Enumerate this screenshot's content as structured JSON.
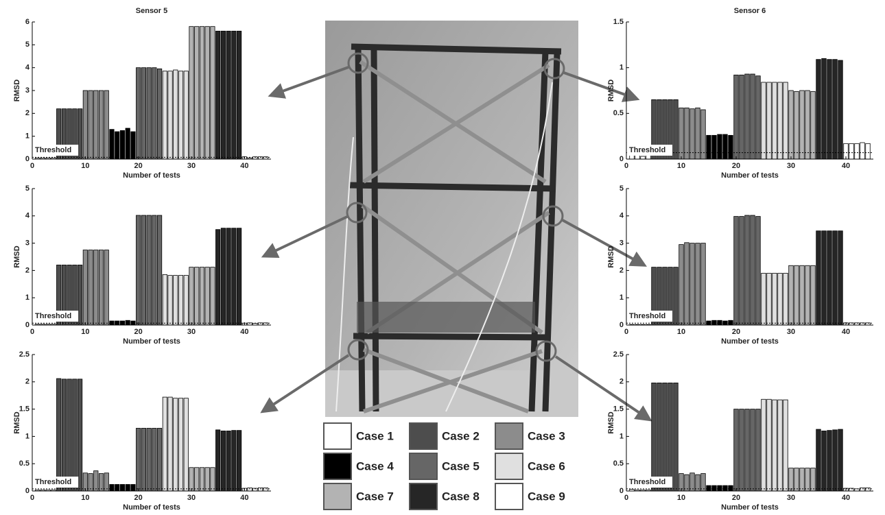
{
  "legend": [
    {
      "name": "Case 1",
      "color": "#ffffff"
    },
    {
      "name": "Case 2",
      "color": "#4d4d4d"
    },
    {
      "name": "Case 3",
      "color": "#8c8c8c"
    },
    {
      "name": "Case 4",
      "color": "#000000"
    },
    {
      "name": "Case 5",
      "color": "#666666"
    },
    {
      "name": "Case 6",
      "color": "#e0e0e0"
    },
    {
      "name": "Case 7",
      "color": "#b3b3b3"
    },
    {
      "name": "Case 8",
      "color": "#262626"
    },
    {
      "name": "Case 9",
      "color": "#ffffff"
    }
  ],
  "chart_data": [
    {
      "type": "bar",
      "title": "Sensor 5",
      "xlabel": "Number of tests",
      "ylabel": "RMSD",
      "xlim": [
        0,
        45
      ],
      "xticks": [
        0,
        10,
        20,
        30,
        40
      ],
      "ylim": [
        0,
        6
      ],
      "yticks": [
        0,
        1,
        2,
        3,
        4,
        5,
        6
      ],
      "threshold": {
        "label": "Threshold",
        "value": 0.08
      },
      "series": [
        {
          "x": [
            1,
            2,
            3,
            4
          ],
          "values": [
            0.05,
            0.05,
            0.05,
            0.05
          ]
        },
        {
          "x": [
            5,
            6,
            7,
            8,
            9
          ],
          "values": [
            2.2,
            2.2,
            2.2,
            2.2,
            2.2
          ]
        },
        {
          "x": [
            10,
            11,
            12,
            13,
            14
          ],
          "values": [
            3.0,
            3.0,
            3.0,
            3.0,
            3.0
          ]
        },
        {
          "x": [
            15,
            16,
            17,
            18,
            19
          ],
          "values": [
            1.3,
            1.2,
            1.25,
            1.35,
            1.2
          ]
        },
        {
          "x": [
            20,
            21,
            22,
            23,
            24
          ],
          "values": [
            4.0,
            4.0,
            4.0,
            4.0,
            3.95
          ]
        },
        {
          "x": [
            25,
            26,
            27,
            28,
            29
          ],
          "values": [
            3.85,
            3.85,
            3.9,
            3.85,
            3.85
          ]
        },
        {
          "x": [
            30,
            31,
            32,
            33,
            34
          ],
          "values": [
            5.8,
            5.8,
            5.8,
            5.8,
            5.8
          ]
        },
        {
          "x": [
            35,
            36,
            37,
            38,
            39
          ],
          "values": [
            5.6,
            5.6,
            5.6,
            5.6,
            5.6
          ]
        },
        {
          "x": [
            40,
            41,
            42,
            43,
            44
          ],
          "values": [
            0.1,
            0.05,
            0.1,
            0.1,
            0.1
          ]
        }
      ]
    },
    {
      "type": "bar",
      "title": "Sensor 6",
      "xlabel": "Number of tests",
      "ylabel": "RMSD",
      "xlim": [
        0,
        45
      ],
      "xticks": [
        0,
        10,
        20,
        30,
        40
      ],
      "ylim": [
        0,
        1.5
      ],
      "yticks": [
        0,
        0.5,
        1,
        1.5
      ],
      "threshold": {
        "label": "Threshold",
        "value": 0.07
      },
      "series": [
        {
          "x": [
            1,
            2,
            3,
            4
          ],
          "values": [
            0.07,
            0.05,
            0.03,
            0.06
          ]
        },
        {
          "x": [
            5,
            6,
            7,
            8,
            9
          ],
          "values": [
            0.65,
            0.65,
            0.65,
            0.65,
            0.65
          ]
        },
        {
          "x": [
            10,
            11,
            12,
            13,
            14
          ],
          "values": [
            0.56,
            0.56,
            0.55,
            0.56,
            0.54
          ]
        },
        {
          "x": [
            15,
            16,
            17,
            18,
            19
          ],
          "values": [
            0.26,
            0.26,
            0.27,
            0.27,
            0.26
          ]
        },
        {
          "x": [
            20,
            21,
            22,
            23,
            24
          ],
          "values": [
            0.92,
            0.92,
            0.93,
            0.93,
            0.91
          ]
        },
        {
          "x": [
            25,
            26,
            27,
            28,
            29
          ],
          "values": [
            0.84,
            0.84,
            0.84,
            0.84,
            0.84
          ]
        },
        {
          "x": [
            30,
            31,
            32,
            33,
            34
          ],
          "values": [
            0.75,
            0.74,
            0.75,
            0.75,
            0.74
          ]
        },
        {
          "x": [
            35,
            36,
            37,
            38,
            39
          ],
          "values": [
            1.09,
            1.1,
            1.09,
            1.09,
            1.08
          ]
        },
        {
          "x": [
            40,
            41,
            42,
            43,
            44
          ],
          "values": [
            0.17,
            0.17,
            0.17,
            0.18,
            0.17
          ]
        }
      ]
    },
    {
      "type": "bar",
      "xlabel": "Number of tests",
      "ylabel": "RMSD",
      "xlim": [
        0,
        45
      ],
      "xticks": [
        0,
        10,
        20,
        30,
        40
      ],
      "ylim": [
        0,
        5
      ],
      "yticks": [
        0,
        1,
        2,
        3,
        4,
        5
      ],
      "threshold": {
        "label": "Threshold",
        "value": 0.07
      },
      "series": [
        {
          "x": [
            1,
            2,
            3,
            4
          ],
          "values": [
            0.03,
            0.03,
            0.03,
            0.03
          ]
        },
        {
          "x": [
            5,
            6,
            7,
            8,
            9
          ],
          "values": [
            2.2,
            2.2,
            2.2,
            2.2,
            2.2
          ]
        },
        {
          "x": [
            10,
            11,
            12,
            13,
            14
          ],
          "values": [
            2.75,
            2.75,
            2.75,
            2.75,
            2.75
          ]
        },
        {
          "x": [
            15,
            16,
            17,
            18,
            19
          ],
          "values": [
            0.15,
            0.15,
            0.15,
            0.17,
            0.15
          ]
        },
        {
          "x": [
            20,
            21,
            22,
            23,
            24
          ],
          "values": [
            4.02,
            4.02,
            4.02,
            4.02,
            4.02
          ]
        },
        {
          "x": [
            25,
            26,
            27,
            28,
            29
          ],
          "values": [
            1.85,
            1.82,
            1.82,
            1.82,
            1.82
          ]
        },
        {
          "x": [
            30,
            31,
            32,
            33,
            34
          ],
          "values": [
            2.12,
            2.12,
            2.12,
            2.12,
            2.12
          ]
        },
        {
          "x": [
            35,
            36,
            37,
            38,
            39
          ],
          "values": [
            3.5,
            3.55,
            3.55,
            3.55,
            3.55
          ]
        },
        {
          "x": [
            40,
            41,
            42,
            43,
            44
          ],
          "values": [
            0.07,
            0.08,
            0.06,
            0.08,
            0.08
          ]
        }
      ]
    },
    {
      "type": "bar",
      "xlabel": "Number of tests",
      "ylabel": "RMSD",
      "xlim": [
        0,
        45
      ],
      "xticks": [
        0,
        10,
        20,
        30,
        40
      ],
      "ylim": [
        0,
        5
      ],
      "yticks": [
        0,
        1,
        2,
        3,
        4,
        5
      ],
      "threshold": {
        "label": "Threshold",
        "value": 0.07
      },
      "series": [
        {
          "x": [
            1,
            2,
            3,
            4
          ],
          "values": [
            0.02,
            0.02,
            0.02,
            0.02
          ]
        },
        {
          "x": [
            5,
            6,
            7,
            8,
            9
          ],
          "values": [
            2.12,
            2.12,
            2.12,
            2.12,
            2.12
          ]
        },
        {
          "x": [
            10,
            11,
            12,
            13,
            14
          ],
          "values": [
            2.95,
            3.02,
            3.0,
            3.0,
            3.0
          ]
        },
        {
          "x": [
            15,
            16,
            17,
            18,
            19
          ],
          "values": [
            0.15,
            0.17,
            0.17,
            0.15,
            0.17
          ]
        },
        {
          "x": [
            20,
            21,
            22,
            23,
            24
          ],
          "values": [
            3.98,
            3.98,
            4.02,
            4.02,
            3.98
          ]
        },
        {
          "x": [
            25,
            26,
            27,
            28,
            29
          ],
          "values": [
            1.9,
            1.9,
            1.9,
            1.9,
            1.9
          ]
        },
        {
          "x": [
            30,
            31,
            32,
            33,
            34
          ],
          "values": [
            2.18,
            2.18,
            2.18,
            2.18,
            2.18
          ]
        },
        {
          "x": [
            35,
            36,
            37,
            38,
            39
          ],
          "values": [
            3.45,
            3.45,
            3.45,
            3.45,
            3.45
          ]
        },
        {
          "x": [
            40,
            41,
            42,
            43,
            44
          ],
          "values": [
            0.08,
            0.08,
            0.08,
            0.08,
            0.08
          ]
        }
      ]
    },
    {
      "type": "bar",
      "xlabel": "Number of tests",
      "ylabel": "RMSD",
      "xlim": [
        0,
        45
      ],
      "xticks": [
        0,
        10,
        20,
        30,
        40
      ],
      "ylim": [
        0,
        2.5
      ],
      "yticks": [
        0,
        0.5,
        1,
        1.5,
        2,
        2.5
      ],
      "threshold": {
        "label": "Threshold",
        "value": 0.04
      },
      "series": [
        {
          "x": [
            1,
            2,
            3,
            4
          ],
          "values": [
            0.02,
            0.02,
            0.02,
            0.02
          ]
        },
        {
          "x": [
            5,
            6,
            7,
            8,
            9
          ],
          "values": [
            2.06,
            2.05,
            2.05,
            2.05,
            2.05
          ]
        },
        {
          "x": [
            10,
            11,
            12,
            13,
            14
          ],
          "values": [
            0.33,
            0.32,
            0.37,
            0.32,
            0.33
          ]
        },
        {
          "x": [
            15,
            16,
            17,
            18,
            19
          ],
          "values": [
            0.12,
            0.12,
            0.12,
            0.12,
            0.12
          ]
        },
        {
          "x": [
            20,
            21,
            22,
            23,
            24
          ],
          "values": [
            1.15,
            1.15,
            1.15,
            1.15,
            1.15
          ]
        },
        {
          "x": [
            25,
            26,
            27,
            28,
            29
          ],
          "values": [
            1.72,
            1.72,
            1.7,
            1.7,
            1.7
          ]
        },
        {
          "x": [
            30,
            31,
            32,
            33,
            34
          ],
          "values": [
            0.43,
            0.43,
            0.43,
            0.43,
            0.43
          ]
        },
        {
          "x": [
            35,
            36,
            37,
            38,
            39
          ],
          "values": [
            1.12,
            1.1,
            1.1,
            1.11,
            1.11
          ]
        },
        {
          "x": [
            40,
            41,
            42,
            43,
            44
          ],
          "values": [
            0.05,
            0.06,
            0.05,
            0.06,
            0.06
          ]
        }
      ]
    },
    {
      "type": "bar",
      "xlabel": "Number of tests",
      "ylabel": "RMSD",
      "xlim": [
        0,
        45
      ],
      "xticks": [
        0,
        10,
        20,
        30,
        40
      ],
      "ylim": [
        0,
        2.5
      ],
      "yticks": [
        0,
        0.5,
        1,
        1.5,
        2,
        2.5
      ],
      "threshold": {
        "label": "Threshold",
        "value": 0.04
      },
      "series": [
        {
          "x": [
            1,
            2,
            3,
            4
          ],
          "values": [
            0.03,
            0.02,
            0.02,
            0.02
          ]
        },
        {
          "x": [
            5,
            6,
            7,
            8,
            9
          ],
          "values": [
            1.98,
            1.98,
            1.98,
            1.98,
            1.98
          ]
        },
        {
          "x": [
            10,
            11,
            12,
            13,
            14
          ],
          "values": [
            0.32,
            0.3,
            0.33,
            0.3,
            0.32
          ]
        },
        {
          "x": [
            15,
            16,
            17,
            18,
            19
          ],
          "values": [
            0.1,
            0.1,
            0.1,
            0.1,
            0.1
          ]
        },
        {
          "x": [
            20,
            21,
            22,
            23,
            24
          ],
          "values": [
            1.5,
            1.5,
            1.5,
            1.5,
            1.5
          ]
        },
        {
          "x": [
            25,
            26,
            27,
            28,
            29
          ],
          "values": [
            1.68,
            1.68,
            1.67,
            1.67,
            1.67
          ]
        },
        {
          "x": [
            30,
            31,
            32,
            33,
            34
          ],
          "values": [
            0.42,
            0.42,
            0.42,
            0.42,
            0.42
          ]
        },
        {
          "x": [
            35,
            36,
            37,
            38,
            39
          ],
          "values": [
            1.13,
            1.1,
            1.11,
            1.12,
            1.13
          ]
        },
        {
          "x": [
            40,
            41,
            42,
            43,
            44
          ],
          "values": [
            0.05,
            0.05,
            0.04,
            0.06,
            0.06
          ]
        }
      ]
    }
  ]
}
